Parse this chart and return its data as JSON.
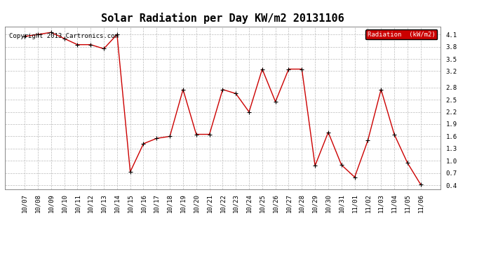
{
  "title": "Solar Radiation per Day KW/m2 20131106",
  "copyright": "Copyright 2013 Cartronics.com",
  "legend_label": "Radiation  (kW/m2)",
  "x_labels": [
    "10/07",
    "10/08",
    "10/09",
    "10/10",
    "10/11",
    "10/12",
    "10/13",
    "10/14",
    "10/15",
    "10/16",
    "10/17",
    "10/18",
    "10/19",
    "10/20",
    "10/21",
    "10/22",
    "10/23",
    "10/24",
    "10/25",
    "10/26",
    "10/27",
    "10/28",
    "10/29",
    "10/30",
    "10/31",
    "11/01",
    "11/02",
    "11/03",
    "11/04",
    "11/05",
    "11/06"
  ],
  "y_values": [
    4.05,
    4.1,
    4.15,
    4.0,
    3.85,
    3.85,
    3.75,
    4.1,
    0.73,
    1.42,
    1.55,
    1.6,
    2.75,
    1.65,
    1.65,
    2.75,
    2.65,
    2.2,
    3.25,
    2.45,
    3.25,
    3.25,
    0.88,
    1.7,
    0.9,
    0.6,
    1.5,
    2.75,
    1.65,
    0.95,
    0.42
  ],
  "line_color": "#cc0000",
  "marker_color": "#000000",
  "bg_color": "#ffffff",
  "grid_color": "#bbbbbb",
  "legend_bg": "#cc0000",
  "legend_text_color": "#ffffff",
  "title_fontsize": 11,
  "tick_fontsize": 6.5,
  "copyright_fontsize": 6.5,
  "ylim": [
    0.3,
    4.3
  ],
  "yticks": [
    0.4,
    0.7,
    1.0,
    1.3,
    1.6,
    1.9,
    2.2,
    2.5,
    2.8,
    3.2,
    3.5,
    3.8,
    4.1
  ]
}
